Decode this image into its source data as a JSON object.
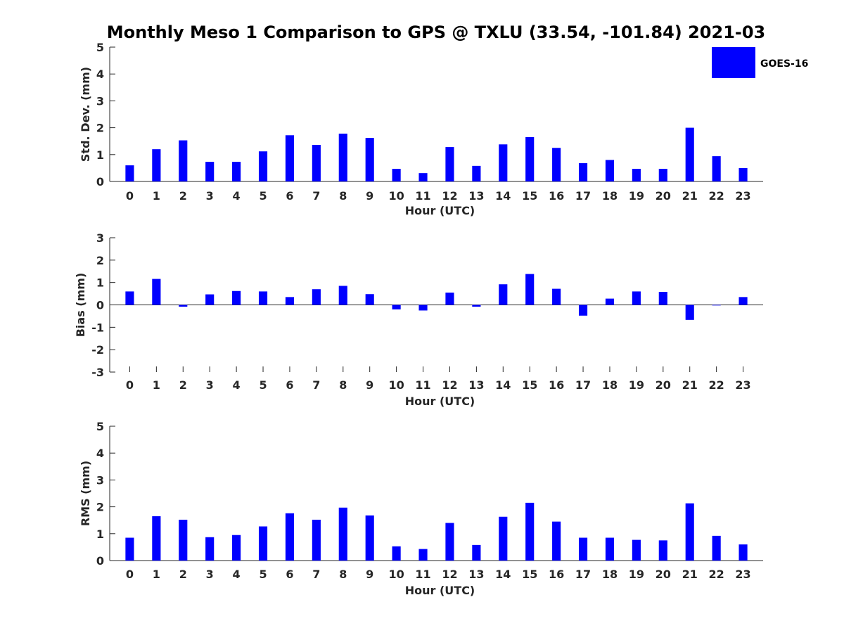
{
  "title": "Monthly Meso 1 Comparison to GPS @ TXLU (33.54, -101.84) 2021-03",
  "legend": {
    "label": "GOES-16",
    "color": "#0000ff",
    "placement": "top-right"
  },
  "chart_data": [
    {
      "type": "bar",
      "xlabel": "Hour (UTC)",
      "ylabel": "Std. Dev. (mm)",
      "ylim": [
        0,
        5
      ],
      "yticks": [
        "0",
        "1",
        "2",
        "3",
        "4",
        "5"
      ],
      "categories": [
        "0",
        "1",
        "2",
        "3",
        "4",
        "5",
        "6",
        "7",
        "8",
        "9",
        "10",
        "11",
        "12",
        "13",
        "14",
        "15",
        "16",
        "17",
        "18",
        "19",
        "20",
        "21",
        "22",
        "23"
      ],
      "series": [
        {
          "name": "GOES-16",
          "color": "#0000ff",
          "values": [
            0.6,
            1.2,
            1.53,
            0.73,
            0.73,
            1.12,
            1.72,
            1.36,
            1.78,
            1.62,
            0.47,
            0.31,
            1.28,
            0.58,
            1.38,
            1.65,
            1.25,
            0.68,
            0.8,
            0.47,
            0.47,
            2.0,
            0.94,
            0.5
          ]
        }
      ],
      "grid": false
    },
    {
      "type": "bar",
      "xlabel": "Hour (UTC)",
      "ylabel": "Bias (mm)",
      "ylim": [
        -3,
        3
      ],
      "yticks": [
        "-3",
        "-2",
        "-1",
        "0",
        "1",
        "2",
        "3"
      ],
      "categories": [
        "0",
        "1",
        "2",
        "3",
        "4",
        "5",
        "6",
        "7",
        "8",
        "9",
        "10",
        "11",
        "12",
        "13",
        "14",
        "15",
        "16",
        "17",
        "18",
        "19",
        "20",
        "21",
        "22",
        "23"
      ],
      "series": [
        {
          "name": "GOES-16",
          "color": "#0000ff",
          "values": [
            0.6,
            1.16,
            -0.08,
            0.47,
            0.62,
            0.6,
            0.35,
            0.7,
            0.85,
            0.48,
            -0.2,
            -0.25,
            0.55,
            -0.08,
            0.92,
            1.38,
            0.72,
            -0.48,
            0.28,
            0.6,
            0.58,
            -0.67,
            -0.02,
            0.35
          ]
        }
      ],
      "grid": false
    },
    {
      "type": "bar",
      "xlabel": "Hour (UTC)",
      "ylabel": "RMS (mm)",
      "ylim": [
        0,
        5
      ],
      "yticks": [
        "0",
        "1",
        "2",
        "3",
        "4",
        "5"
      ],
      "categories": [
        "0",
        "1",
        "2",
        "3",
        "4",
        "5",
        "6",
        "7",
        "8",
        "9",
        "10",
        "11",
        "12",
        "13",
        "14",
        "15",
        "16",
        "17",
        "18",
        "19",
        "20",
        "21",
        "22",
        "23"
      ],
      "series": [
        {
          "name": "GOES-16",
          "color": "#0000ff",
          "values": [
            0.85,
            1.65,
            1.52,
            0.87,
            0.95,
            1.27,
            1.76,
            1.52,
            1.97,
            1.68,
            0.53,
            0.43,
            1.4,
            0.58,
            1.63,
            2.15,
            1.45,
            0.85,
            0.85,
            0.77,
            0.75,
            2.13,
            0.92,
            0.6
          ]
        }
      ],
      "grid": false
    }
  ]
}
